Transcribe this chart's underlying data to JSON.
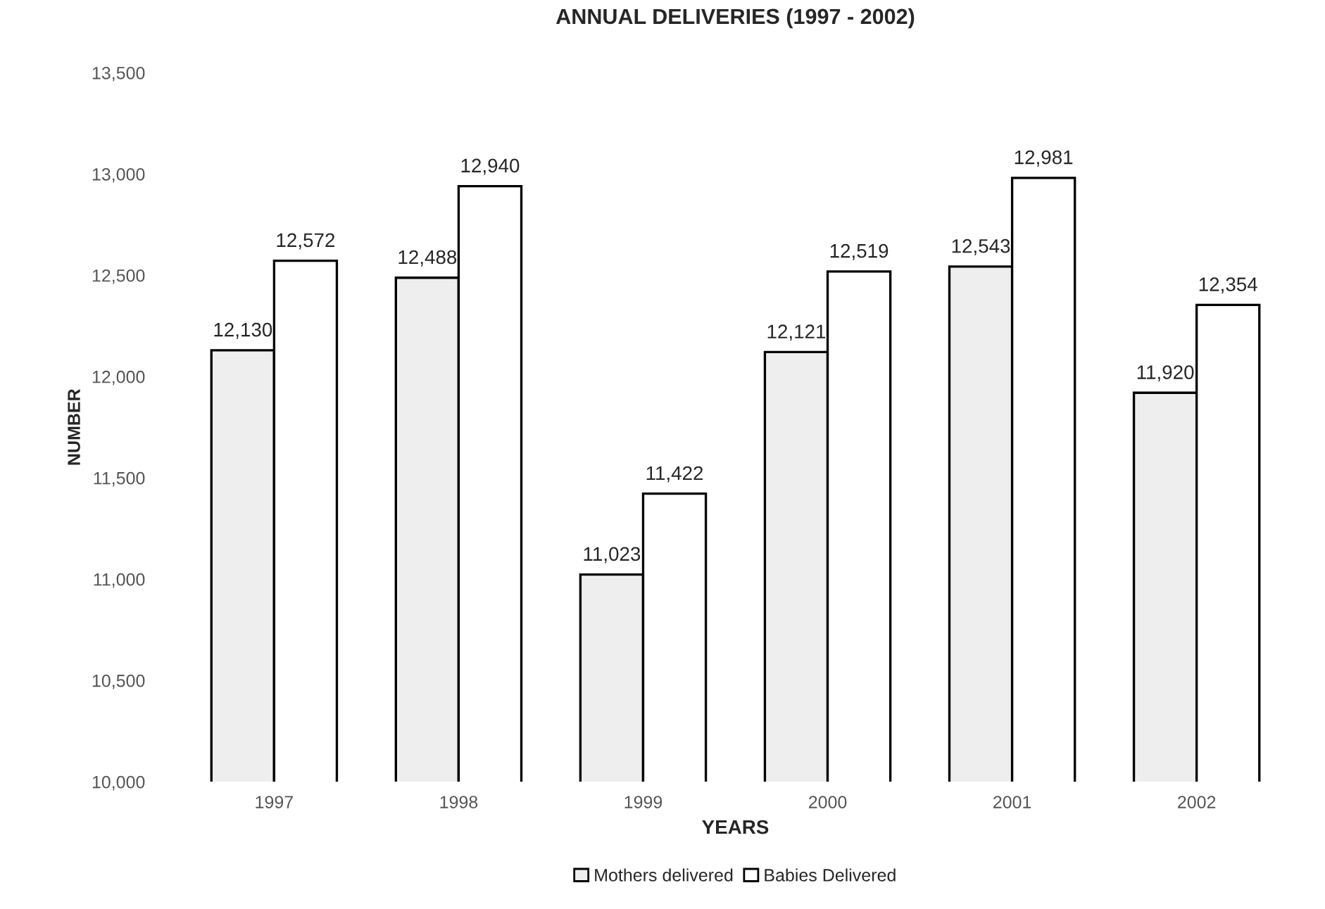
{
  "chart_data": {
    "type": "bar",
    "title": "ANNUAL DELIVERIES (1997 - 2002)",
    "xlabel": "YEARS",
    "ylabel": "NUMBER",
    "categories": [
      "1997",
      "1998",
      "1999",
      "2000",
      "2001",
      "2002"
    ],
    "series": [
      {
        "name": "Mothers delivered",
        "color": "#eeeeee",
        "values": [
          12130,
          12488,
          11023,
          12121,
          12543,
          11920
        ],
        "value_labels": [
          "12,130",
          "12,488",
          "11,023",
          "12,121",
          "12,543",
          "11,920"
        ]
      },
      {
        "name": "Babies Delivered",
        "color": "#ffffff",
        "values": [
          12572,
          12940,
          11422,
          12519,
          12981,
          12354
        ],
        "value_labels": [
          "12,572",
          "12,940",
          "11,422",
          "12,519",
          "12,981",
          "12,354"
        ]
      }
    ],
    "ylim": [
      10000,
      13500
    ],
    "yticks": [
      {
        "value": 10000,
        "label": "10,000"
      },
      {
        "value": 10500,
        "label": "10,500"
      },
      {
        "value": 11000,
        "label": "11,000"
      },
      {
        "value": 11500,
        "label": "11,500"
      },
      {
        "value": 12000,
        "label": "12,000"
      },
      {
        "value": 12500,
        "label": "12,500"
      },
      {
        "value": 13000,
        "label": "13,000"
      },
      {
        "value": 13500,
        "label": "13,500"
      }
    ],
    "legend": "bottom",
    "grid": false
  }
}
